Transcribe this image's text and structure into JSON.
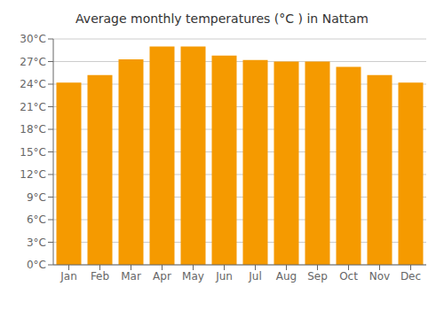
{
  "chart_data": {
    "type": "bar",
    "title": "Average monthly temperatures (°C ) in Nattam",
    "categories": [
      "Jan",
      "Feb",
      "Mar",
      "Apr",
      "May",
      "Jun",
      "Jul",
      "Aug",
      "Sep",
      "Oct",
      "Nov",
      "Dec"
    ],
    "values": [
      24.2,
      25.2,
      27.3,
      29.0,
      29.0,
      27.8,
      27.2,
      27.0,
      27.0,
      26.3,
      25.2,
      24.2
    ],
    "color": "#F59A00",
    "ylim": [
      0,
      30
    ],
    "yticks": [
      {
        "value": 0,
        "label": "0°C"
      },
      {
        "value": 3,
        "label": "3°C"
      },
      {
        "value": 6,
        "label": "6°C"
      },
      {
        "value": 9,
        "label": "9°C"
      },
      {
        "value": 12,
        "label": "12°C"
      },
      {
        "value": 15,
        "label": "15°C"
      },
      {
        "value": 18,
        "label": "18°C"
      },
      {
        "value": 21,
        "label": "21°C"
      },
      {
        "value": 24,
        "label": "24°C"
      },
      {
        "value": 27,
        "label": "27°C"
      },
      {
        "value": 30,
        "label": "30°C"
      }
    ],
    "grid": true
  }
}
